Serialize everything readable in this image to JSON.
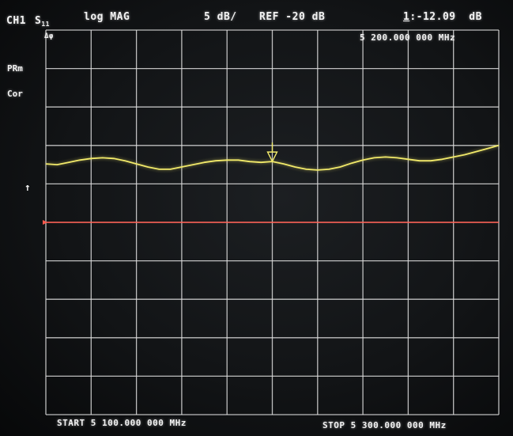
{
  "header": {
    "channel": "CH1",
    "param_main": "S",
    "param_sub": "11",
    "format": "log MAG",
    "scale": "5 dB/",
    "ref": "REF -20 dB",
    "marker_index": "1",
    "marker_value": ":-12.09  dB"
  },
  "marker": {
    "freq_readout": "5 200.000 000 MHz",
    "corner_tag": "Δφ"
  },
  "side_labels": {
    "pre": "PRm",
    "cor": "Cor",
    "ref_arrow": "↑"
  },
  "footer": {
    "start": "START 5 100.000 000 MHz",
    "stop": "STOP 5 300.000 000 MHz"
  },
  "colors": {
    "trace": "#f2ea6a",
    "reference_line": "#ff5a4e",
    "grid": "#dcdcdc",
    "text": "#f2f2f2"
  },
  "chart_data": {
    "type": "line",
    "title": "",
    "xlabel": "",
    "ylabel": "",
    "x_unit": "MHz",
    "y_unit": "dB",
    "xlim": [
      5100,
      5300
    ],
    "ylim": [
      -45,
      5
    ],
    "grid": true,
    "ref_level": -20,
    "marker": {
      "x": 5200,
      "y": -12.09
    },
    "series": [
      {
        "x": [
          5100,
          5105,
          5110,
          5115,
          5120,
          5125,
          5130,
          5135,
          5140,
          5145,
          5150,
          5155,
          5160,
          5165,
          5170,
          5175,
          5180,
          5185,
          5190,
          5195,
          5200,
          5205,
          5210,
          5215,
          5220,
          5225,
          5230,
          5235,
          5240,
          5245,
          5250,
          5255,
          5260,
          5265,
          5270,
          5275,
          5280,
          5285,
          5290,
          5295,
          5300
        ],
        "values": [
          -12.4,
          -12.5,
          -12.2,
          -11.9,
          -11.7,
          -11.6,
          -11.7,
          -12.0,
          -12.4,
          -12.8,
          -13.1,
          -13.1,
          -12.8,
          -12.5,
          -12.2,
          -12.0,
          -11.9,
          -11.9,
          -12.1,
          -12.2,
          -12.09,
          -12.4,
          -12.8,
          -13.1,
          -13.2,
          -13.1,
          -12.8,
          -12.3,
          -11.9,
          -11.6,
          -11.5,
          -11.6,
          -11.8,
          -12.0,
          -12.0,
          -11.8,
          -11.5,
          -11.2,
          -10.8,
          -10.4,
          -10.0
        ]
      }
    ]
  }
}
